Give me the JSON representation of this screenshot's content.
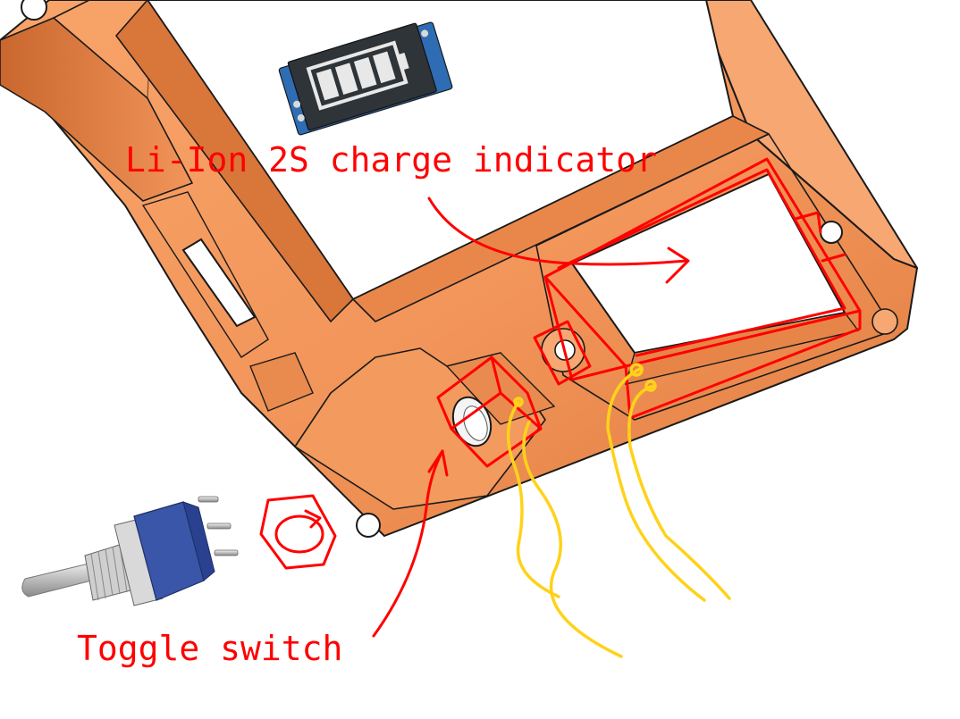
{
  "annotations": {
    "charge_indicator_label": "Li-Ion 2S charge indicator",
    "toggle_switch_label": "Toggle switch"
  },
  "colors": {
    "background": "#ffffff",
    "enclosure_fill": "#f2955a",
    "enclosure_light": "#f8b07c",
    "enclosure_dark": "#c9672e",
    "outline": "#1a1a1a",
    "annotation_red": "#ff0000",
    "wire_yellow": "#ffd21a",
    "pcb_blue": "#2e6db3",
    "display_dark": "#2f3438",
    "switch_metal": "#c8c8c8",
    "switch_body_blue": "#3a56a8"
  },
  "icons": {
    "indicator_module": "battery-level-display-module",
    "toggle_switch": "mini-toggle-switch",
    "hex_nut": "hex-nut-sketch"
  }
}
